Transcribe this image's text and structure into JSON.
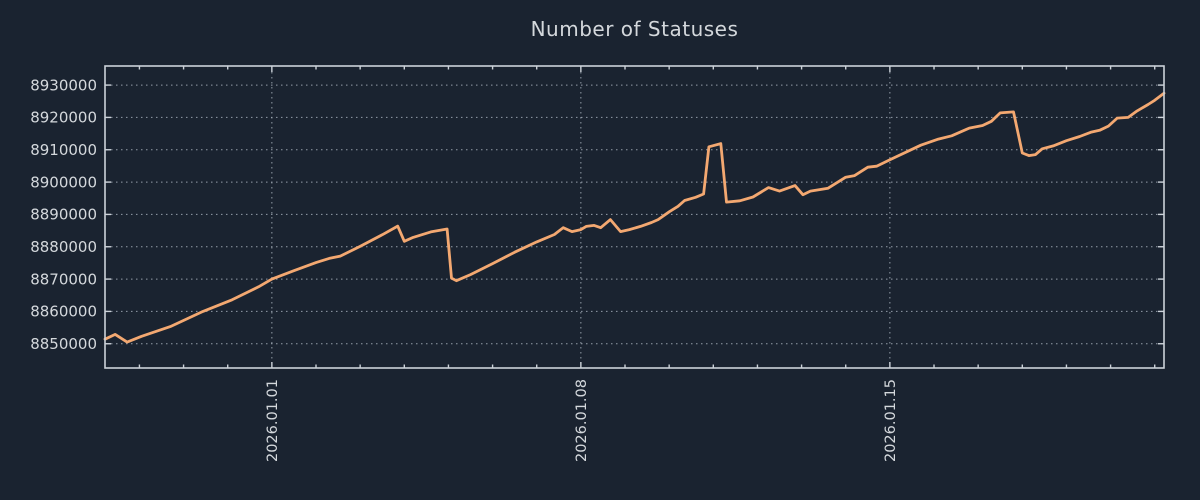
{
  "colors": {
    "background": "#1a2330",
    "axis": "#ccd2d9",
    "grid": "#a9b3be",
    "text": "#d4d8dc",
    "line": "#f3a871"
  },
  "chart_data": {
    "type": "line",
    "title": "Number of Statuses",
    "legend": "none",
    "grid": true,
    "x_axis": {
      "unit": "days relative to 2026-01-01",
      "lim": [
        -3.78,
        20.21
      ],
      "major_ticks": [
        {
          "day": 0,
          "label": "2026.01.01"
        },
        {
          "day": 7,
          "label": "2026.01.08"
        },
        {
          "day": 14,
          "label": "2026.01.15"
        }
      ],
      "minor_tick_step_days": 1
    },
    "y_axis": {
      "lim": [
        8842500,
        8935900
      ],
      "ticks": [
        8850000,
        8860000,
        8870000,
        8880000,
        8890000,
        8900000,
        8910000,
        8920000,
        8930000
      ]
    },
    "series": [
      {
        "name": "statuses",
        "color": "#f3a871",
        "points": [
          [
            -3.78,
            8851400
          ],
          [
            -3.55,
            8852900
          ],
          [
            -3.28,
            8850500
          ],
          [
            -2.95,
            8852300
          ],
          [
            -2.3,
            8855300
          ],
          [
            -1.56,
            8860000
          ],
          [
            -0.9,
            8863600
          ],
          [
            -0.3,
            8867600
          ],
          [
            0.0,
            8870000
          ],
          [
            0.5,
            8872600
          ],
          [
            1.0,
            8875100
          ],
          [
            1.3,
            8876400
          ],
          [
            1.55,
            8877100
          ],
          [
            2.0,
            8880100
          ],
          [
            2.5,
            8883700
          ],
          [
            2.85,
            8886400
          ],
          [
            3.0,
            8881700
          ],
          [
            3.2,
            8882900
          ],
          [
            3.6,
            8884600
          ],
          [
            3.97,
            8885500
          ],
          [
            4.07,
            8870300
          ],
          [
            4.18,
            8869500
          ],
          [
            4.5,
            8871400
          ],
          [
            5.0,
            8874800
          ],
          [
            5.5,
            8878300
          ],
          [
            6.0,
            8881500
          ],
          [
            6.4,
            8883800
          ],
          [
            6.6,
            8885900
          ],
          [
            6.8,
            8884700
          ],
          [
            7.0,
            8885300
          ],
          [
            7.12,
            8886300
          ],
          [
            7.3,
            8886600
          ],
          [
            7.45,
            8885900
          ],
          [
            7.67,
            8888400
          ],
          [
            7.9,
            8884700
          ],
          [
            8.1,
            8885300
          ],
          [
            8.35,
            8886300
          ],
          [
            8.6,
            8887500
          ],
          [
            8.75,
            8888400
          ],
          [
            9.0,
            8890800
          ],
          [
            9.2,
            8892500
          ],
          [
            9.35,
            8894300
          ],
          [
            9.6,
            8895300
          ],
          [
            9.78,
            8896300
          ],
          [
            9.9,
            8910900
          ],
          [
            10.17,
            8911900
          ],
          [
            10.3,
            8893800
          ],
          [
            10.6,
            8894200
          ],
          [
            10.9,
            8895400
          ],
          [
            11.25,
            8898300
          ],
          [
            11.5,
            8897200
          ],
          [
            11.85,
            8898900
          ],
          [
            12.03,
            8896100
          ],
          [
            12.2,
            8897200
          ],
          [
            12.6,
            8898100
          ],
          [
            13.0,
            8901500
          ],
          [
            13.2,
            8902000
          ],
          [
            13.5,
            8904600
          ],
          [
            13.7,
            8904900
          ],
          [
            14.0,
            8906900
          ],
          [
            14.7,
            8911400
          ],
          [
            15.1,
            8913300
          ],
          [
            15.4,
            8914300
          ],
          [
            15.8,
            8916700
          ],
          [
            16.1,
            8917500
          ],
          [
            16.3,
            8918800
          ],
          [
            16.5,
            8921400
          ],
          [
            16.8,
            8921700
          ],
          [
            17.0,
            8909000
          ],
          [
            17.15,
            8908200
          ],
          [
            17.3,
            8908500
          ],
          [
            17.45,
            8910300
          ],
          [
            17.7,
            8911200
          ],
          [
            18.0,
            8912800
          ],
          [
            18.3,
            8914100
          ],
          [
            18.55,
            8915400
          ],
          [
            18.75,
            8916000
          ],
          [
            18.95,
            8917300
          ],
          [
            19.15,
            8919800
          ],
          [
            19.4,
            8920000
          ],
          [
            19.6,
            8922000
          ],
          [
            19.85,
            8924000
          ],
          [
            20.0,
            8925300
          ],
          [
            20.21,
            8927500
          ]
        ]
      }
    ]
  }
}
